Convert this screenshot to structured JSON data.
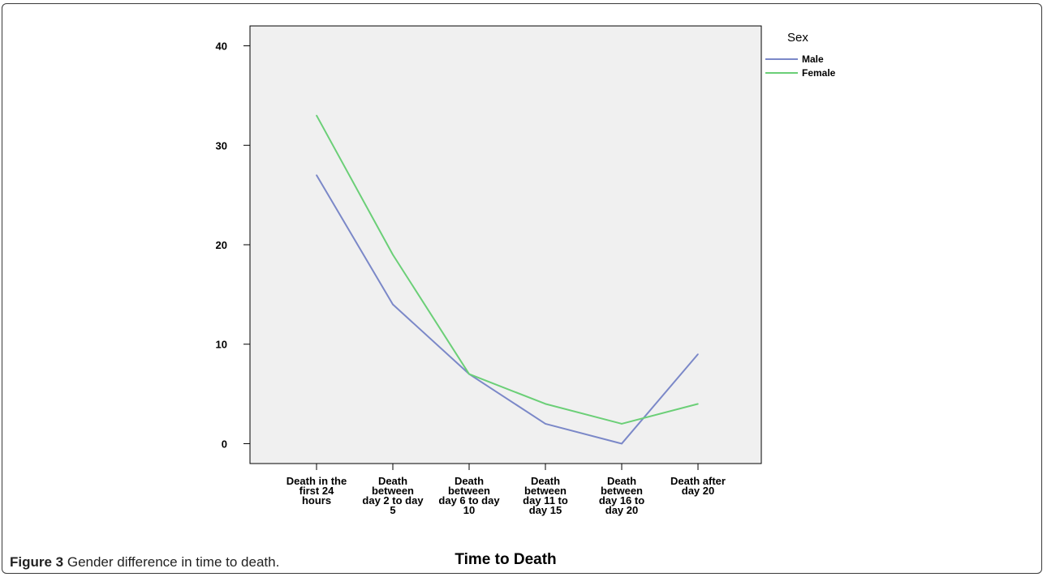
{
  "figure": {
    "caption_label": "Figure 3",
    "caption_text": " Gender difference in time to death."
  },
  "chart_data": {
    "type": "line",
    "title": "",
    "xlabel": "Time to Death",
    "ylabel": "",
    "ylim": [
      -2,
      42
    ],
    "yticks": [
      0,
      10,
      20,
      30,
      40
    ],
    "grid": false,
    "legend_title": "Sex",
    "legend_position": "top-right, outside plot",
    "background": "#f0f0f0",
    "categories": [
      [
        "Death in the",
        "first 24",
        "hours"
      ],
      [
        "Death",
        "between",
        "day 2 to day",
        "5"
      ],
      [
        "Death",
        "between",
        "day 6 to day",
        "10"
      ],
      [
        "Death",
        "between",
        "day 11 to",
        "day 15"
      ],
      [
        "Death",
        "between",
        "day 16 to",
        "day 20"
      ],
      [
        "Death after",
        "day 20"
      ]
    ],
    "series": [
      {
        "name": "Male",
        "color": "#7b88c8",
        "values": [
          27,
          14,
          7,
          2,
          0,
          9
        ]
      },
      {
        "name": "Female",
        "color": "#6bcf77",
        "values": [
          33,
          19,
          7,
          4,
          2,
          4
        ]
      }
    ]
  }
}
